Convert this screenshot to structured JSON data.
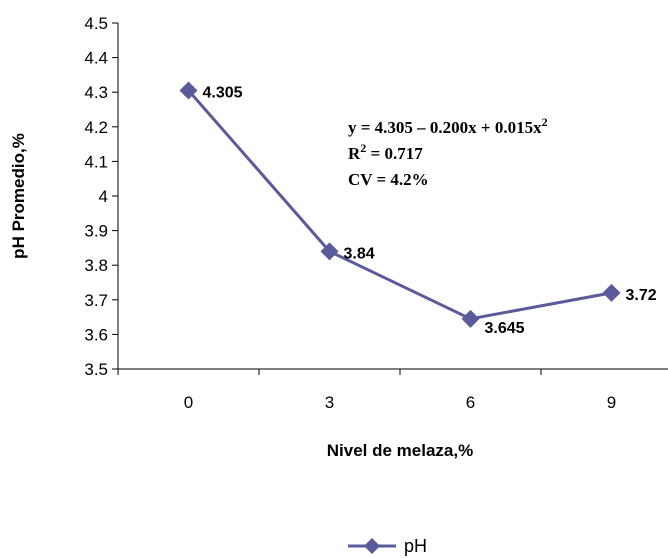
{
  "chart_data": {
    "type": "line",
    "xlabel": "Nivel de melaza,%",
    "ylabel": "pH Promedio,%",
    "categories": [
      "0",
      "3",
      "6",
      "9"
    ],
    "ylim": [
      3.5,
      4.5
    ],
    "yticks": [
      "3.5",
      "3.6",
      "3.7",
      "3.8",
      "3.9",
      "4",
      "4.1",
      "4.2",
      "4.3",
      "4.4",
      "4.5"
    ],
    "grid": false,
    "legend_position": "bottom",
    "series": [
      {
        "name": "pH",
        "color": "#5B5B9B",
        "values": [
          4.305,
          3.84,
          3.645,
          3.72
        ],
        "labels": [
          "4.305",
          "3.84",
          "3.645",
          "3.72"
        ]
      }
    ],
    "annotation": {
      "line1": "y = 4.305 – 0.200x + 0.015x",
      "line1_sup": "2",
      "line2": "R",
      "line2_sup": "2",
      "line2_rest": " = 0.717",
      "line3": "CV = 4.2%"
    }
  }
}
